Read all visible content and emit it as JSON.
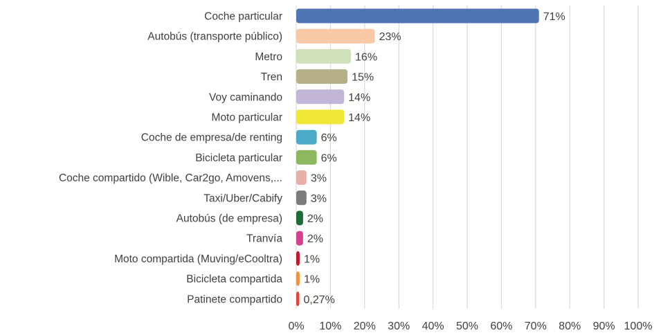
{
  "chart_data": {
    "type": "bar",
    "orientation": "horizontal",
    "categories": [
      "Coche particular",
      "Autobús (transporte público)",
      "Metro",
      "Tren",
      "Voy caminando",
      "Moto particular",
      "Coche de empresa/de renting",
      "Bicicleta particular",
      "Coche compartido (Wible, Car2go, Amovens,...",
      "Taxi/Uber/Cabify",
      "Autobús (de empresa)",
      "Tranvía",
      "Moto compartida (Muving/eCooltra)",
      "Bicicleta compartida",
      "Patinete compartido"
    ],
    "values": [
      71,
      23,
      16,
      15,
      14,
      14,
      6,
      6,
      3,
      3,
      2,
      2,
      1,
      1,
      0.27
    ],
    "value_labels": [
      "71%",
      "23%",
      "16%",
      "15%",
      "14%",
      "14%",
      "6%",
      "6%",
      "3%",
      "3%",
      "2%",
      "2%",
      "1%",
      "1%",
      "0,27%"
    ],
    "colors": [
      "#4F75B3",
      "#F9C8A6",
      "#CFE0BA",
      "#B5B087",
      "#C3B5D6",
      "#EFE637",
      "#4BAAC6",
      "#8DB860",
      "#E6AFA8",
      "#7B7B7B",
      "#1E6B3A",
      "#D5418E",
      "#C01A30",
      "#F0923E",
      "#E0463A"
    ],
    "xlim": [
      0,
      100
    ],
    "x_ticks": [
      0,
      10,
      20,
      30,
      40,
      50,
      60,
      70,
      80,
      90,
      100
    ],
    "x_tick_labels": [
      "0%",
      "10%",
      "20%",
      "30%",
      "40%",
      "50%",
      "60%",
      "70%",
      "80%",
      "90%",
      "100%"
    ],
    "gridlines": "vertical",
    "grid_color": "#D9D9D9",
    "title": "",
    "xlabel": "",
    "ylabel": ""
  }
}
